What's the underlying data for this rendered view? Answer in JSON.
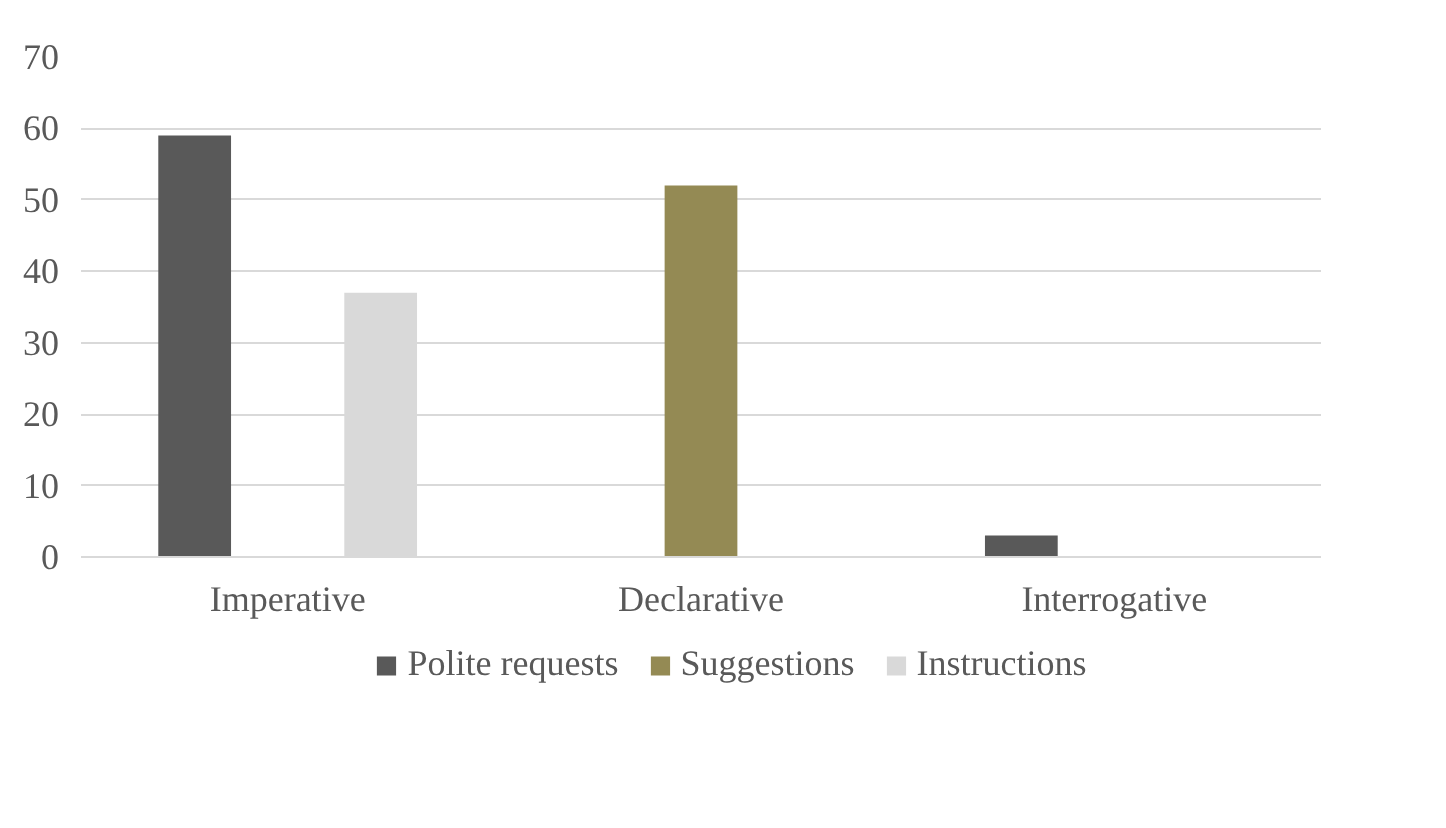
{
  "chart_data": {
    "type": "bar",
    "categories": [
      "Imperative",
      "Declarative",
      "Interrogative"
    ],
    "series": [
      {
        "name": "Polite requests",
        "color": "#595959",
        "values": [
          59,
          0,
          3
        ]
      },
      {
        "name": "Suggestions",
        "color": "#948a54",
        "values": [
          0,
          52,
          0
        ]
      },
      {
        "name": "Instructions",
        "color": "#d9d9d9",
        "values": [
          37,
          0,
          0
        ]
      }
    ],
    "ylim": [
      0,
      70
    ],
    "yticks": [
      0,
      10,
      20,
      30,
      40,
      50,
      60,
      70
    ],
    "grid": "y",
    "legend": "bottom"
  }
}
